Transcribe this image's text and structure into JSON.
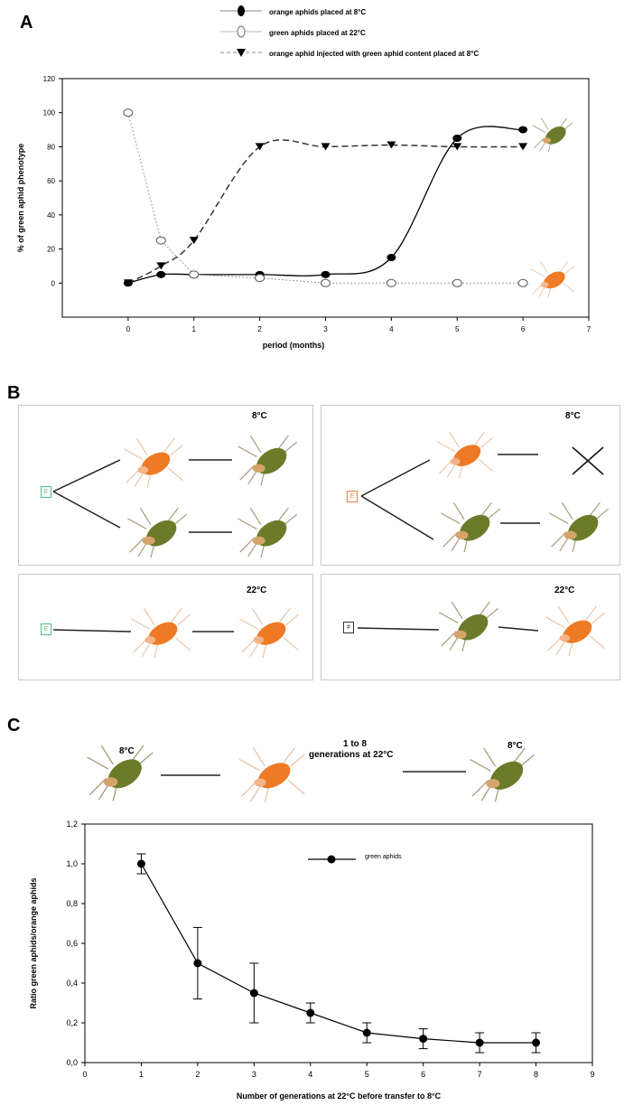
{
  "panels": {
    "a": "A",
    "b": "B",
    "c": "C"
  },
  "colors": {
    "orange": "#ee7a25",
    "green": "#6b7b2a",
    "greenBox": "#4cc27a",
    "orangeBox": "#e8813a"
  },
  "chart_data": [
    {
      "type": "line",
      "xlabel": "period (months)",
      "ylabel": "% of green aphid phenotype",
      "xlim": [
        -1,
        7
      ],
      "ylim": [
        -20,
        120
      ],
      "xticks": [
        "0",
        "1",
        "2",
        "3",
        "4",
        "5",
        "6",
        "7"
      ],
      "yticks": [
        "0",
        "20",
        "40",
        "60",
        "80",
        "100",
        "120"
      ],
      "legend": [
        "orange aphids placed at 8°C",
        "green aphids placed at 22°C",
        "orange aphid injected with green aphid content placed at 8°C"
      ],
      "series": [
        {
          "name": "orange aphids placed at 8°C",
          "x": [
            0,
            0.5,
            1,
            2,
            3,
            4,
            5,
            6
          ],
          "y": [
            0,
            5,
            5,
            5,
            5,
            15,
            85,
            90
          ]
        },
        {
          "name": "green aphids placed at 22°C",
          "x": [
            0,
            0.5,
            1,
            2,
            3,
            4,
            5,
            6
          ],
          "y": [
            100,
            25,
            5,
            3,
            0,
            0,
            0,
            0
          ]
        },
        {
          "name": "orange aphid injected with green aphid content placed at 8°C",
          "x": [
            0,
            0.5,
            1,
            2,
            3,
            4,
            5,
            6
          ],
          "y": [
            0,
            10,
            25,
            80,
            80,
            81,
            80,
            80
          ]
        }
      ]
    },
    {
      "type": "line",
      "xlabel": "Number of generations at 22°C before transfer to 8°C",
      "ylabel": "Ratio green aphids/orange aphids",
      "xlim": [
        0,
        9
      ],
      "ylim": [
        0,
        1.2
      ],
      "xticks": [
        "0",
        "1",
        "2",
        "3",
        "4",
        "5",
        "6",
        "7",
        "8",
        "9"
      ],
      "yticks": [
        "0,0",
        "0,2",
        "0,4",
        "0,6",
        "0,8",
        "1,0",
        "1,2"
      ],
      "legend": [
        "green aphids"
      ],
      "series": [
        {
          "name": "green aphids",
          "x": [
            1,
            2,
            3,
            4,
            5,
            6,
            7,
            8
          ],
          "y": [
            1.0,
            0.5,
            0.35,
            0.25,
            0.15,
            0.12,
            0.1,
            0.1
          ],
          "err": [
            0.05,
            0.18,
            0.15,
            0.05,
            0.05,
            0.05,
            0.05,
            0.05
          ]
        }
      ]
    }
  ],
  "diagramB": {
    "box1": {
      "temp": "8°C",
      "marker": "E"
    },
    "box2": {
      "temp": "8°C",
      "marker": "E"
    },
    "box3": {
      "temp": "22°C",
      "marker": "E"
    },
    "box4": {
      "temp": "22°C",
      "marker": "#"
    }
  },
  "diagramC": {
    "left_temp": "8°C",
    "middle_line1": "1 to 8",
    "middle_line2": "generations at 22°C",
    "right_temp": "8°C"
  }
}
